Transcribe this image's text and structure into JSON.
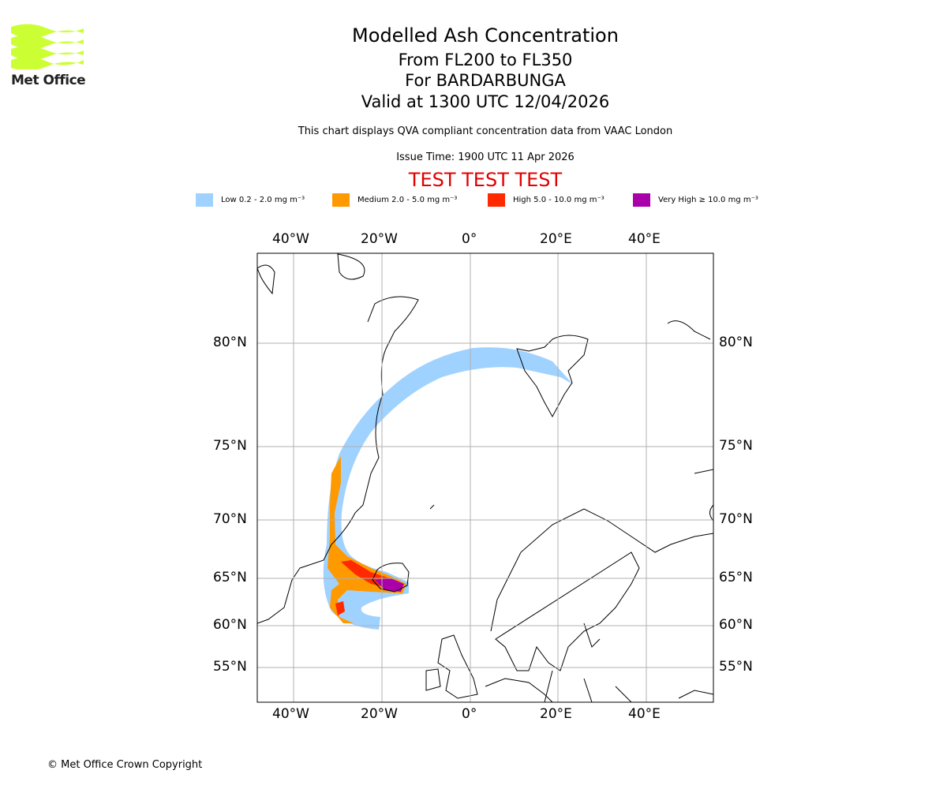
{
  "logo": {
    "text": "Met Office",
    "color": "#ccff33"
  },
  "header": {
    "title": "Modelled Ash Concentration",
    "level": "From FL200 to FL350",
    "volcano": "For BARDARBUNGA",
    "valid": "Valid at 1300 UTC 12/04/2026",
    "note": "This chart displays QVA compliant concentration data from VAAC London",
    "issue": "Issue Time: 1900 UTC 11 Apr 2026",
    "test": "TEST TEST TEST"
  },
  "legend": [
    {
      "label": "Low 0.2 - 2.0 mg m⁻³",
      "color": "#a0d2ff"
    },
    {
      "label": "Medium 2.0 - 5.0 mg m⁻³",
      "color": "#ff9900"
    },
    {
      "label": "High 5.0 - 10.0 mg m⁻³",
      "color": "#ff2a00"
    },
    {
      "label": "Very High ≥ 10.0 mg m⁻³",
      "color": "#aa00aa"
    }
  ],
  "axes": {
    "lon": [
      "40°W",
      "20°W",
      "0°",
      "20°E",
      "40°E"
    ],
    "lat": [
      "80°N",
      "75°N",
      "70°N",
      "65°N",
      "60°N",
      "55°N"
    ]
  },
  "footer": {
    "copyright": "© Met Office Crown Copyright"
  }
}
